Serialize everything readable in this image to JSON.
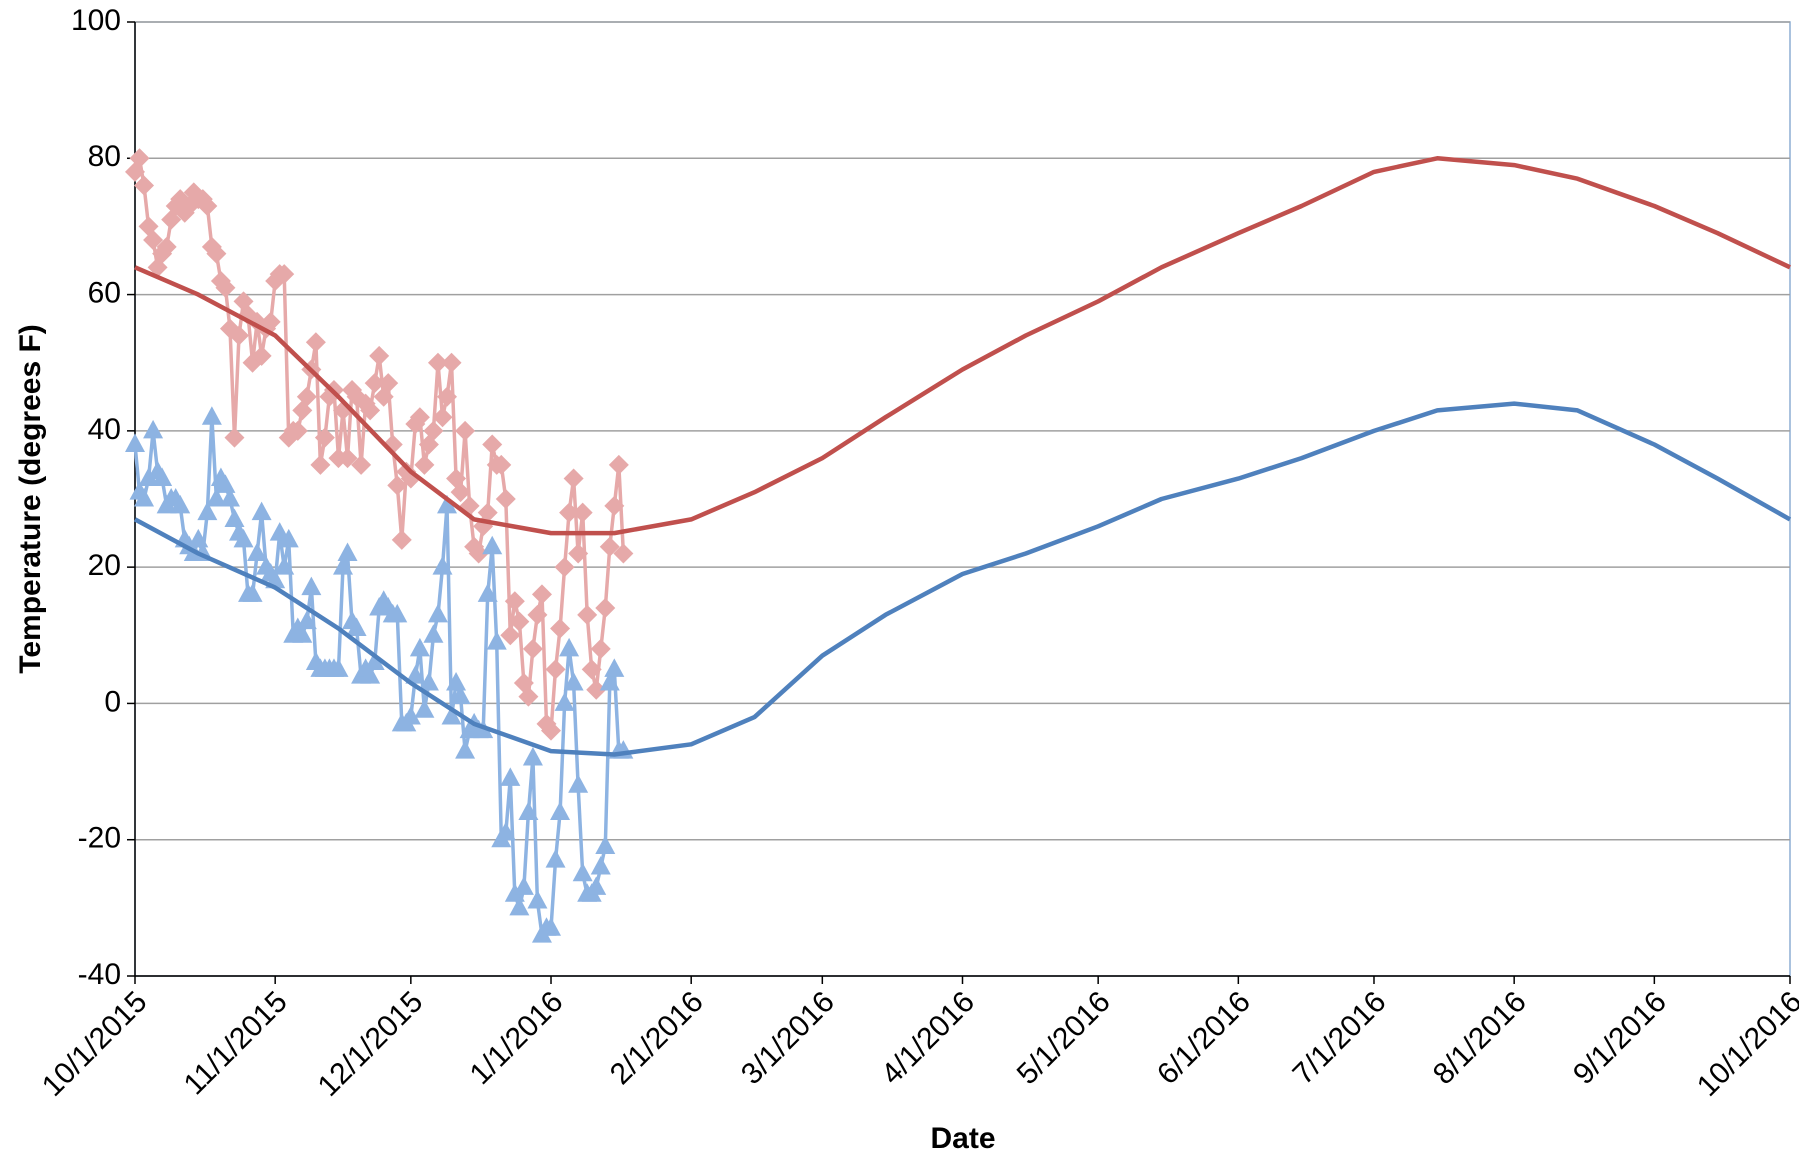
{
  "chart_data": {
    "type": "line",
    "x_label": "Date",
    "y_label": "Temperature (degrees F)",
    "xlim": [
      "10/1/2015",
      "10/1/2016"
    ],
    "xticks": [
      "10/1/2015",
      "11/1/2015",
      "12/1/2015",
      "1/1/2016",
      "2/1/2016",
      "3/1/2016",
      "4/1/2016",
      "5/1/2016",
      "6/1/2016",
      "7/1/2016",
      "8/1/2016",
      "9/1/2016",
      "10/1/2016"
    ],
    "ylim": [
      -40,
      100
    ],
    "yticks": [
      -40,
      -20,
      0,
      20,
      40,
      60,
      80,
      100
    ],
    "grid": true,
    "x": [
      "10/1/2015",
      "10/2/2015",
      "10/3/2015",
      "10/4/2015",
      "10/5/2015",
      "10/6/2015",
      "10/7/2015",
      "10/8/2015",
      "10/9/2015",
      "10/10/2015",
      "10/11/2015",
      "10/12/2015",
      "10/13/2015",
      "10/14/2015",
      "10/15/2015",
      "10/16/2015",
      "10/17/2015",
      "10/18/2015",
      "10/19/2015",
      "10/20/2015",
      "10/21/2015",
      "10/22/2015",
      "10/23/2015",
      "10/24/2015",
      "10/25/2015",
      "10/26/2015",
      "10/27/2015",
      "10/28/2015",
      "10/29/2015",
      "10/30/2015",
      "10/31/2015",
      "11/1/2015",
      "11/2/2015",
      "11/3/2015",
      "11/4/2015",
      "11/5/2015",
      "11/6/2015",
      "11/7/2015",
      "11/8/2015",
      "11/9/2015",
      "11/10/2015",
      "11/11/2015",
      "11/12/2015",
      "11/13/2015",
      "11/14/2015",
      "11/15/2015",
      "11/16/2015",
      "11/17/2015",
      "11/18/2015",
      "11/19/2015",
      "11/20/2015",
      "11/21/2015",
      "11/22/2015",
      "11/23/2015",
      "11/24/2015",
      "11/25/2015",
      "11/26/2015",
      "11/27/2015",
      "11/28/2015",
      "11/29/2015",
      "11/30/2015",
      "12/1/2015",
      "12/2/2015",
      "12/3/2015",
      "12/4/2015",
      "12/5/2015",
      "12/6/2015",
      "12/7/2015",
      "12/8/2015",
      "12/9/2015",
      "12/10/2015",
      "12/11/2015",
      "12/12/2015",
      "12/13/2015",
      "12/14/2015",
      "12/15/2015",
      "12/16/2015",
      "12/17/2015",
      "12/18/2015",
      "12/19/2015",
      "12/20/2015",
      "12/21/2015",
      "12/22/2015",
      "12/23/2015",
      "12/24/2015",
      "12/25/2015",
      "12/26/2015",
      "12/27/2015",
      "12/28/2015",
      "12/29/2015",
      "12/30/2015",
      "12/31/2015",
      "1/1/2016",
      "1/2/2016",
      "1/3/2016",
      "1/4/2016",
      "1/5/2016",
      "1/6/2016",
      "1/7/2016",
      "1/8/2016",
      "1/9/2016",
      "1/10/2016",
      "1/11/2016",
      "1/12/2016",
      "1/13/2016",
      "1/14/2016",
      "1/15/2016",
      "1/16/2016",
      "1/17/2016"
    ],
    "series": [
      {
        "color": "#e6a9a9",
        "marker": "diamond",
        "values": [
          78,
          80,
          76,
          70,
          68,
          64,
          66,
          67,
          71,
          73,
          74,
          72,
          73,
          75,
          74,
          74,
          73,
          67,
          66,
          62,
          61,
          55,
          39,
          54,
          59,
          57,
          50,
          56,
          51,
          55,
          56,
          62,
          63,
          63,
          39,
          40,
          40,
          43,
          45,
          49,
          53,
          35,
          39,
          45,
          46,
          36,
          43,
          36,
          46,
          45,
          35,
          44,
          43,
          47,
          51,
          45,
          47,
          38,
          32,
          24,
          34,
          33,
          41,
          42,
          35,
          38,
          40,
          50,
          42,
          45,
          50,
          33,
          31,
          40,
          29,
          23,
          22,
          26,
          28,
          38,
          35,
          35,
          30,
          10,
          15,
          12,
          3,
          1,
          8,
          13,
          16,
          -3,
          -4,
          5,
          11,
          20,
          28,
          33,
          22,
          28,
          13,
          5,
          2,
          8,
          14,
          23,
          29,
          35,
          22
        ]
      },
      {
        "color": "#8db3e2",
        "marker": "triangle",
        "values": [
          38,
          31,
          30,
          33,
          40,
          34,
          33,
          29,
          30,
          30,
          29,
          24,
          23,
          22,
          24,
          22,
          28,
          42,
          30,
          33,
          32,
          30,
          27,
          25,
          24,
          16,
          16,
          22,
          28,
          20,
          19,
          18,
          25,
          20,
          24,
          10,
          11,
          10,
          12,
          17,
          6,
          5,
          5,
          5,
          5,
          5,
          20,
          22,
          12,
          11,
          4,
          5,
          4,
          6,
          14,
          15,
          14,
          13,
          13,
          -3,
          -3,
          -2,
          4,
          8,
          -1,
          3,
          10,
          13,
          20,
          29,
          -2,
          3,
          1,
          -7,
          -4,
          -3,
          -4,
          -4,
          16,
          23,
          9,
          -20,
          -19,
          -11,
          -28,
          -30,
          -27,
          -16,
          -8,
          -29,
          -34,
          -33,
          -33,
          -23,
          -16,
          0,
          8,
          3,
          -12,
          -25,
          -28,
          -28,
          -27,
          -24,
          -21,
          3,
          5,
          -7,
          -7
        ]
      },
      {
        "color": "#c0504d",
        "x": [
          "10/1/2015",
          "10/15/2015",
          "11/1/2015",
          "11/15/2015",
          "12/1/2015",
          "12/15/2015",
          "1/1/2016",
          "1/15/2016",
          "2/1/2016",
          "2/15/2016",
          "3/1/2016",
          "3/15/2016",
          "4/1/2016",
          "4/15/2016",
          "5/1/2016",
          "5/15/2016",
          "6/1/2016",
          "6/15/2016",
          "7/1/2016",
          "7/15/2016",
          "8/1/2016",
          "8/15/2016",
          "9/1/2016",
          "9/15/2016",
          "10/1/2016"
        ],
        "values": [
          64,
          60,
          54,
          45,
          34,
          27,
          25,
          25,
          27,
          31,
          36,
          42,
          49,
          54,
          59,
          64,
          69,
          73,
          78,
          80,
          79,
          77,
          73,
          69,
          64
        ]
      },
      {
        "color": "#4f81bd",
        "x": [
          "10/1/2015",
          "10/15/2015",
          "11/1/2015",
          "11/15/2015",
          "12/1/2015",
          "12/15/2015",
          "1/1/2016",
          "1/15/2016",
          "2/1/2016",
          "2/15/2016",
          "3/1/2016",
          "3/15/2016",
          "4/1/2016",
          "4/15/2016",
          "5/1/2016",
          "5/15/2016",
          "6/1/2016",
          "6/15/2016",
          "7/1/2016",
          "7/15/2016",
          "8/1/2016",
          "8/15/2016",
          "9/1/2016",
          "9/15/2016",
          "10/1/2016"
        ],
        "values": [
          27,
          22,
          17,
          11,
          3,
          -3,
          -7,
          -7.5,
          -6,
          -2,
          7,
          13,
          19,
          22,
          26,
          30,
          33,
          36,
          40,
          43,
          44,
          43,
          38,
          33,
          27
        ]
      }
    ]
  }
}
